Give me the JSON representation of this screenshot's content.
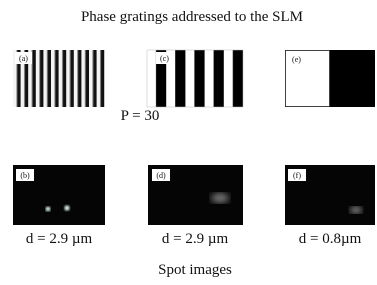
{
  "title": "Phase gratings addressed to the SLM",
  "gratings": [
    {
      "label": "(a)"
    },
    {
      "label": "(c)"
    },
    {
      "label": "(e)"
    }
  ],
  "period_label": "P = 30",
  "spots": [
    {
      "label": "(b)",
      "caption": "d = 2.9 µm"
    },
    {
      "label": "(d)",
      "caption": "d = 2.9 µm"
    },
    {
      "label": "(f)",
      "caption": "d = 0.8µm"
    }
  ],
  "footer": "Spot images"
}
